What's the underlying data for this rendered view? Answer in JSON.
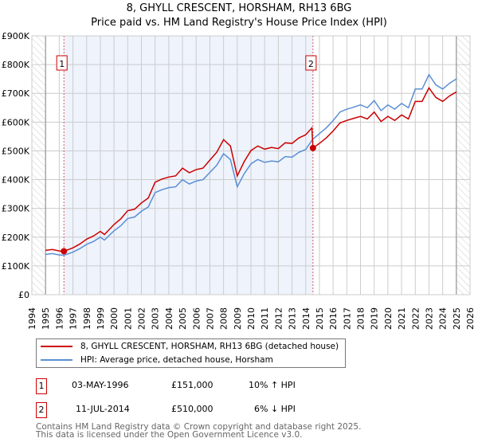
{
  "title": "8, GHYLL CRESCENT, HORSHAM, RH13 6BG",
  "subtitle": "Price paid vs. HM Land Registry's House Price Index (HPI)",
  "chart_data": {
    "type": "line",
    "ylim": [
      0,
      900000
    ],
    "xlim": [
      1994,
      2026
    ],
    "yticks": [
      "£0",
      "£100K",
      "£200K",
      "£300K",
      "£400K",
      "£500K",
      "£600K",
      "£700K",
      "£800K",
      "£900K"
    ],
    "xticks": [
      "1994",
      "1995",
      "1996",
      "1997",
      "1998",
      "1999",
      "2000",
      "2001",
      "2002",
      "2003",
      "2004",
      "2005",
      "2006",
      "2007",
      "2008",
      "2009",
      "2010",
      "2011",
      "2012",
      "2013",
      "2014",
      "2015",
      "2016",
      "2017",
      "2018",
      "2019",
      "2020",
      "2021",
      "2022",
      "2023",
      "2024",
      "2025",
      "2026"
    ],
    "shaded_range": [
      1996.34,
      2014.53
    ],
    "hatched": [
      [
        1994,
        1995
      ],
      [
        2025,
        2026
      ]
    ],
    "series": [
      {
        "name": "8, GHYLL CRESCENT, HORSHAM, RH13 6BG (detached house)",
        "color": "#cc0000",
        "x": [
          1995,
          1995.5,
          1996,
          1996.34,
          1997,
          1997.5,
          1998,
          1998.5,
          1999,
          1999.3,
          2000,
          2000.5,
          2001,
          2001.5,
          2002,
          2002.5,
          2003,
          2003.5,
          2004,
          2004.5,
          2005,
          2005.5,
          2006,
          2006.5,
          2007,
          2007.5,
          2008,
          2008.5,
          2009,
          2009.5,
          2010,
          2010.5,
          2011,
          2011.5,
          2012,
          2012.5,
          2013,
          2013.5,
          2014,
          2014.45,
          2014.53,
          2015,
          2015.5,
          2016,
          2016.5,
          2017,
          2017.5,
          2018,
          2018.5,
          2019,
          2019.5,
          2020,
          2020.5,
          2021,
          2021.5,
          2022,
          2022.5,
          2023,
          2023.5,
          2024,
          2024.5,
          2025
        ],
        "y": [
          154,
          157,
          152,
          151,
          163,
          176,
          193,
          204,
          220,
          209,
          244,
          264,
          292,
          297,
          319,
          336,
          391,
          402,
          409,
          413,
          440,
          424,
          435,
          440,
          468,
          495,
          539,
          517,
          413,
          462,
          501,
          517,
          506,
          512,
          508,
          528,
          526,
          545,
          556,
          580,
          510,
          526,
          545,
          569,
          597,
          606,
          613,
          620,
          611,
          635,
          602,
          620,
          606,
          625,
          611,
          672,
          672,
          719,
          686,
          672,
          691,
          705
        ]
      },
      {
        "name": "HPI: Average price, detached house, Horsham",
        "color": "#5b8fd4",
        "x": [
          1995,
          1995.5,
          1996,
          1996.34,
          1997,
          1997.5,
          1998,
          1998.5,
          1999,
          1999.3,
          2000,
          2000.5,
          2001,
          2001.5,
          2002,
          2002.5,
          2003,
          2003.5,
          2004,
          2004.5,
          2005,
          2005.5,
          2006,
          2006.5,
          2007,
          2007.5,
          2008,
          2008.5,
          2009,
          2009.5,
          2010,
          2010.5,
          2011,
          2011.5,
          2012,
          2012.5,
          2013,
          2013.5,
          2014,
          2014.5,
          2015,
          2015.5,
          2016,
          2016.5,
          2017,
          2017.5,
          2018,
          2018.5,
          2019,
          2019.5,
          2020,
          2020.5,
          2021,
          2021.5,
          2022,
          2022.5,
          2023,
          2023.5,
          2024,
          2024.5,
          2025
        ],
        "y": [
          140,
          143,
          138,
          137,
          148,
          160,
          175,
          185,
          200,
          190,
          222,
          240,
          265,
          270,
          290,
          305,
          355,
          365,
          372,
          375,
          400,
          385,
          395,
          400,
          425,
          450,
          490,
          470,
          375,
          420,
          455,
          470,
          460,
          465,
          462,
          480,
          478,
          495,
          505,
          540,
          560,
          580,
          605,
          635,
          645,
          652,
          660,
          650,
          675,
          640,
          660,
          645,
          665,
          650,
          715,
          715,
          765,
          730,
          715,
          735,
          750
        ]
      }
    ],
    "y_unit": "thousand GBP",
    "sales": [
      {
        "label": "1",
        "x": 1996.34,
        "y": 151
      },
      {
        "label": "2",
        "x": 2014.53,
        "y": 510
      }
    ]
  },
  "transactions": [
    {
      "num": "1",
      "date": "03-MAY-1996",
      "price": "£151,000",
      "hpi": "10% ↑ HPI"
    },
    {
      "num": "2",
      "date": "11-JUL-2014",
      "price": "£510,000",
      "hpi": "6% ↓ HPI"
    }
  ],
  "footer": [
    "Contains HM Land Registry data © Crown copyright and database right 2025.",
    "This data is licensed under the Open Government Licence v3.0."
  ]
}
